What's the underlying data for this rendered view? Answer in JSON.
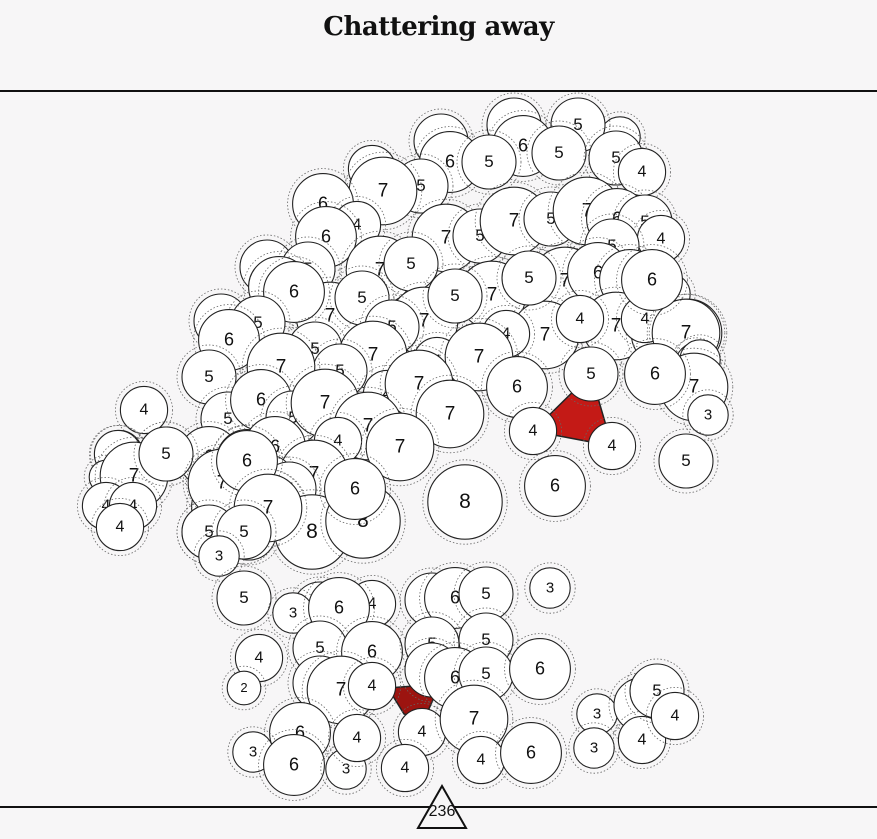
{
  "title": "Chattering away",
  "page_number": "236",
  "colors": {
    "node_fill": "#ffffff",
    "stroke": "#222222",
    "highlight_a": "#c41a16",
    "highlight_b": "#9c1410",
    "background": "#f7f6f7"
  },
  "chart_data": {
    "type": "bubble-network",
    "nodes": [
      {
        "v": "5"
      },
      {
        "v": "3"
      },
      {
        "v": "5"
      },
      {
        "v": "5"
      },
      {
        "v": "6"
      },
      {
        "v": "6"
      },
      {
        "v": "5"
      },
      {
        "v": "5"
      },
      {
        "v": "5"
      },
      {
        "v": "4"
      },
      {
        "v": "4"
      },
      {
        "v": "5"
      },
      {
        "v": "7"
      },
      {
        "v": "6"
      },
      {
        "v": "4"
      },
      {
        "v": "6"
      },
      {
        "v": "7"
      },
      {
        "v": "5"
      },
      {
        "v": "7"
      },
      {
        "v": "5"
      },
      {
        "v": "7"
      },
      {
        "v": "6"
      },
      {
        "v": "5"
      },
      {
        "v": "4"
      },
      {
        "v": "5"
      },
      {
        "v": "5"
      },
      {
        "v": "5"
      },
      {
        "v": "6"
      },
      {
        "v": "7"
      },
      {
        "v": "5"
      },
      {
        "v": "7"
      },
      {
        "v": "5"
      },
      {
        "v": "6"
      },
      {
        "v": "7"
      },
      {
        "v": "6"
      },
      {
        "v": "6"
      },
      {
        "v": "3"
      },
      {
        "v": "5"
      },
      {
        "v": "5"
      },
      {
        "v": "6"
      },
      {
        "v": "7"
      },
      {
        "v": "5"
      },
      {
        "v": "7"
      },
      {
        "v": "5"
      },
      {
        "v": "7"
      },
      {
        "v": "4"
      },
      {
        "v": "7"
      },
      {
        "v": "4"
      },
      {
        "v": "7"
      },
      {
        "v": "4"
      },
      {
        "v": "7"
      },
      {
        "v": "7"
      },
      {
        "v": "3"
      },
      {
        "v": "5"
      },
      {
        "v": "7"
      },
      {
        "v": "5"
      },
      {
        "v": "5"
      },
      {
        "v": "7"
      },
      {
        "v": "4"
      },
      {
        "v": "7"
      },
      {
        "v": "3"
      },
      {
        "v": "5"
      },
      {
        "v": "6"
      },
      {
        "v": "5"
      },
      {
        "v": "7"
      },
      {
        "v": "4"
      },
      {
        "v": "7"
      },
      {
        "v": "6"
      },
      {
        "v": "5"
      },
      {
        "v": "6"
      },
      {
        "v": "7"
      },
      {
        "v": "3"
      },
      {
        "v": "4"
      },
      {
        "v": "5"
      },
      {
        "v": "6"
      },
      {
        "v": "5"
      },
      {
        "v": "7"
      },
      {
        "v": "7"
      },
      {
        "v": "4"
      },
      {
        "v": "7"
      },
      {
        "v": "4"
      },
      {
        "v": "4"
      },
      {
        "v": "5"
      },
      {
        "v": "6"
      },
      {
        "v": "6"
      },
      {
        "v": "6"
      },
      {
        "v": "7"
      },
      {
        "v": "5"
      },
      {
        "v": "5"
      },
      {
        "v": "6"
      },
      {
        "v": "5"
      },
      {
        "v": "7"
      },
      {
        "v": "5"
      },
      {
        "v": "4"
      },
      {
        "v": "8"
      },
      {
        "v": "8"
      },
      {
        "v": "6"
      },
      {
        "v": "8"
      },
      {
        "v": "6"
      },
      {
        "v": "5"
      },
      {
        "v": "4"
      },
      {
        "v": "2"
      },
      {
        "v": "7"
      },
      {
        "v": "4"
      },
      {
        "v": "4"
      },
      {
        "v": "4"
      },
      {
        "v": "5"
      },
      {
        "v": "6"
      },
      {
        "v": "7"
      },
      {
        "v": "6"
      },
      {
        "v": "7"
      },
      {
        "v": "5"
      },
      {
        "v": "5"
      },
      {
        "v": "3"
      },
      {
        "v": "3"
      },
      {
        "v": "5"
      },
      {
        "v": "5"
      },
      {
        "v": "3"
      },
      {
        "v": "5"
      },
      {
        "v": "6"
      },
      {
        "v": "4"
      },
      {
        "v": "5"
      },
      {
        "v": "6"
      },
      {
        "v": "5"
      },
      {
        "v": "4"
      },
      {
        "v": "6"
      },
      {
        "v": "5"
      },
      {
        "v": "5"
      },
      {
        "v": "2"
      },
      {
        "v": "5"
      },
      {
        "v": "7"
      },
      {
        "v": "4"
      },
      {
        "v": "5"
      },
      {
        "v": "4"
      },
      {
        "v": "6"
      },
      {
        "v": "5"
      },
      {
        "v": "6"
      },
      {
        "v": "6"
      },
      {
        "v": "7"
      },
      {
        "v": "3"
      },
      {
        "v": "6"
      },
      {
        "v": "3"
      },
      {
        "v": "4"
      },
      {
        "v": "4"
      },
      {
        "v": "4"
      },
      {
        "v": "6"
      },
      {
        "v": "3"
      },
      {
        "v": "3"
      },
      {
        "v": "5"
      },
      {
        "v": "4"
      },
      {
        "v": "5"
      },
      {
        "v": "4"
      },
      {
        "v": "3"
      },
      {
        "v": "3"
      }
    ],
    "highlights": [
      {
        "nodes": [
          "5",
          "4",
          "4"
        ]
      },
      {
        "nodes": [
          "4",
          "7",
          "4",
          "4"
        ]
      }
    ]
  }
}
